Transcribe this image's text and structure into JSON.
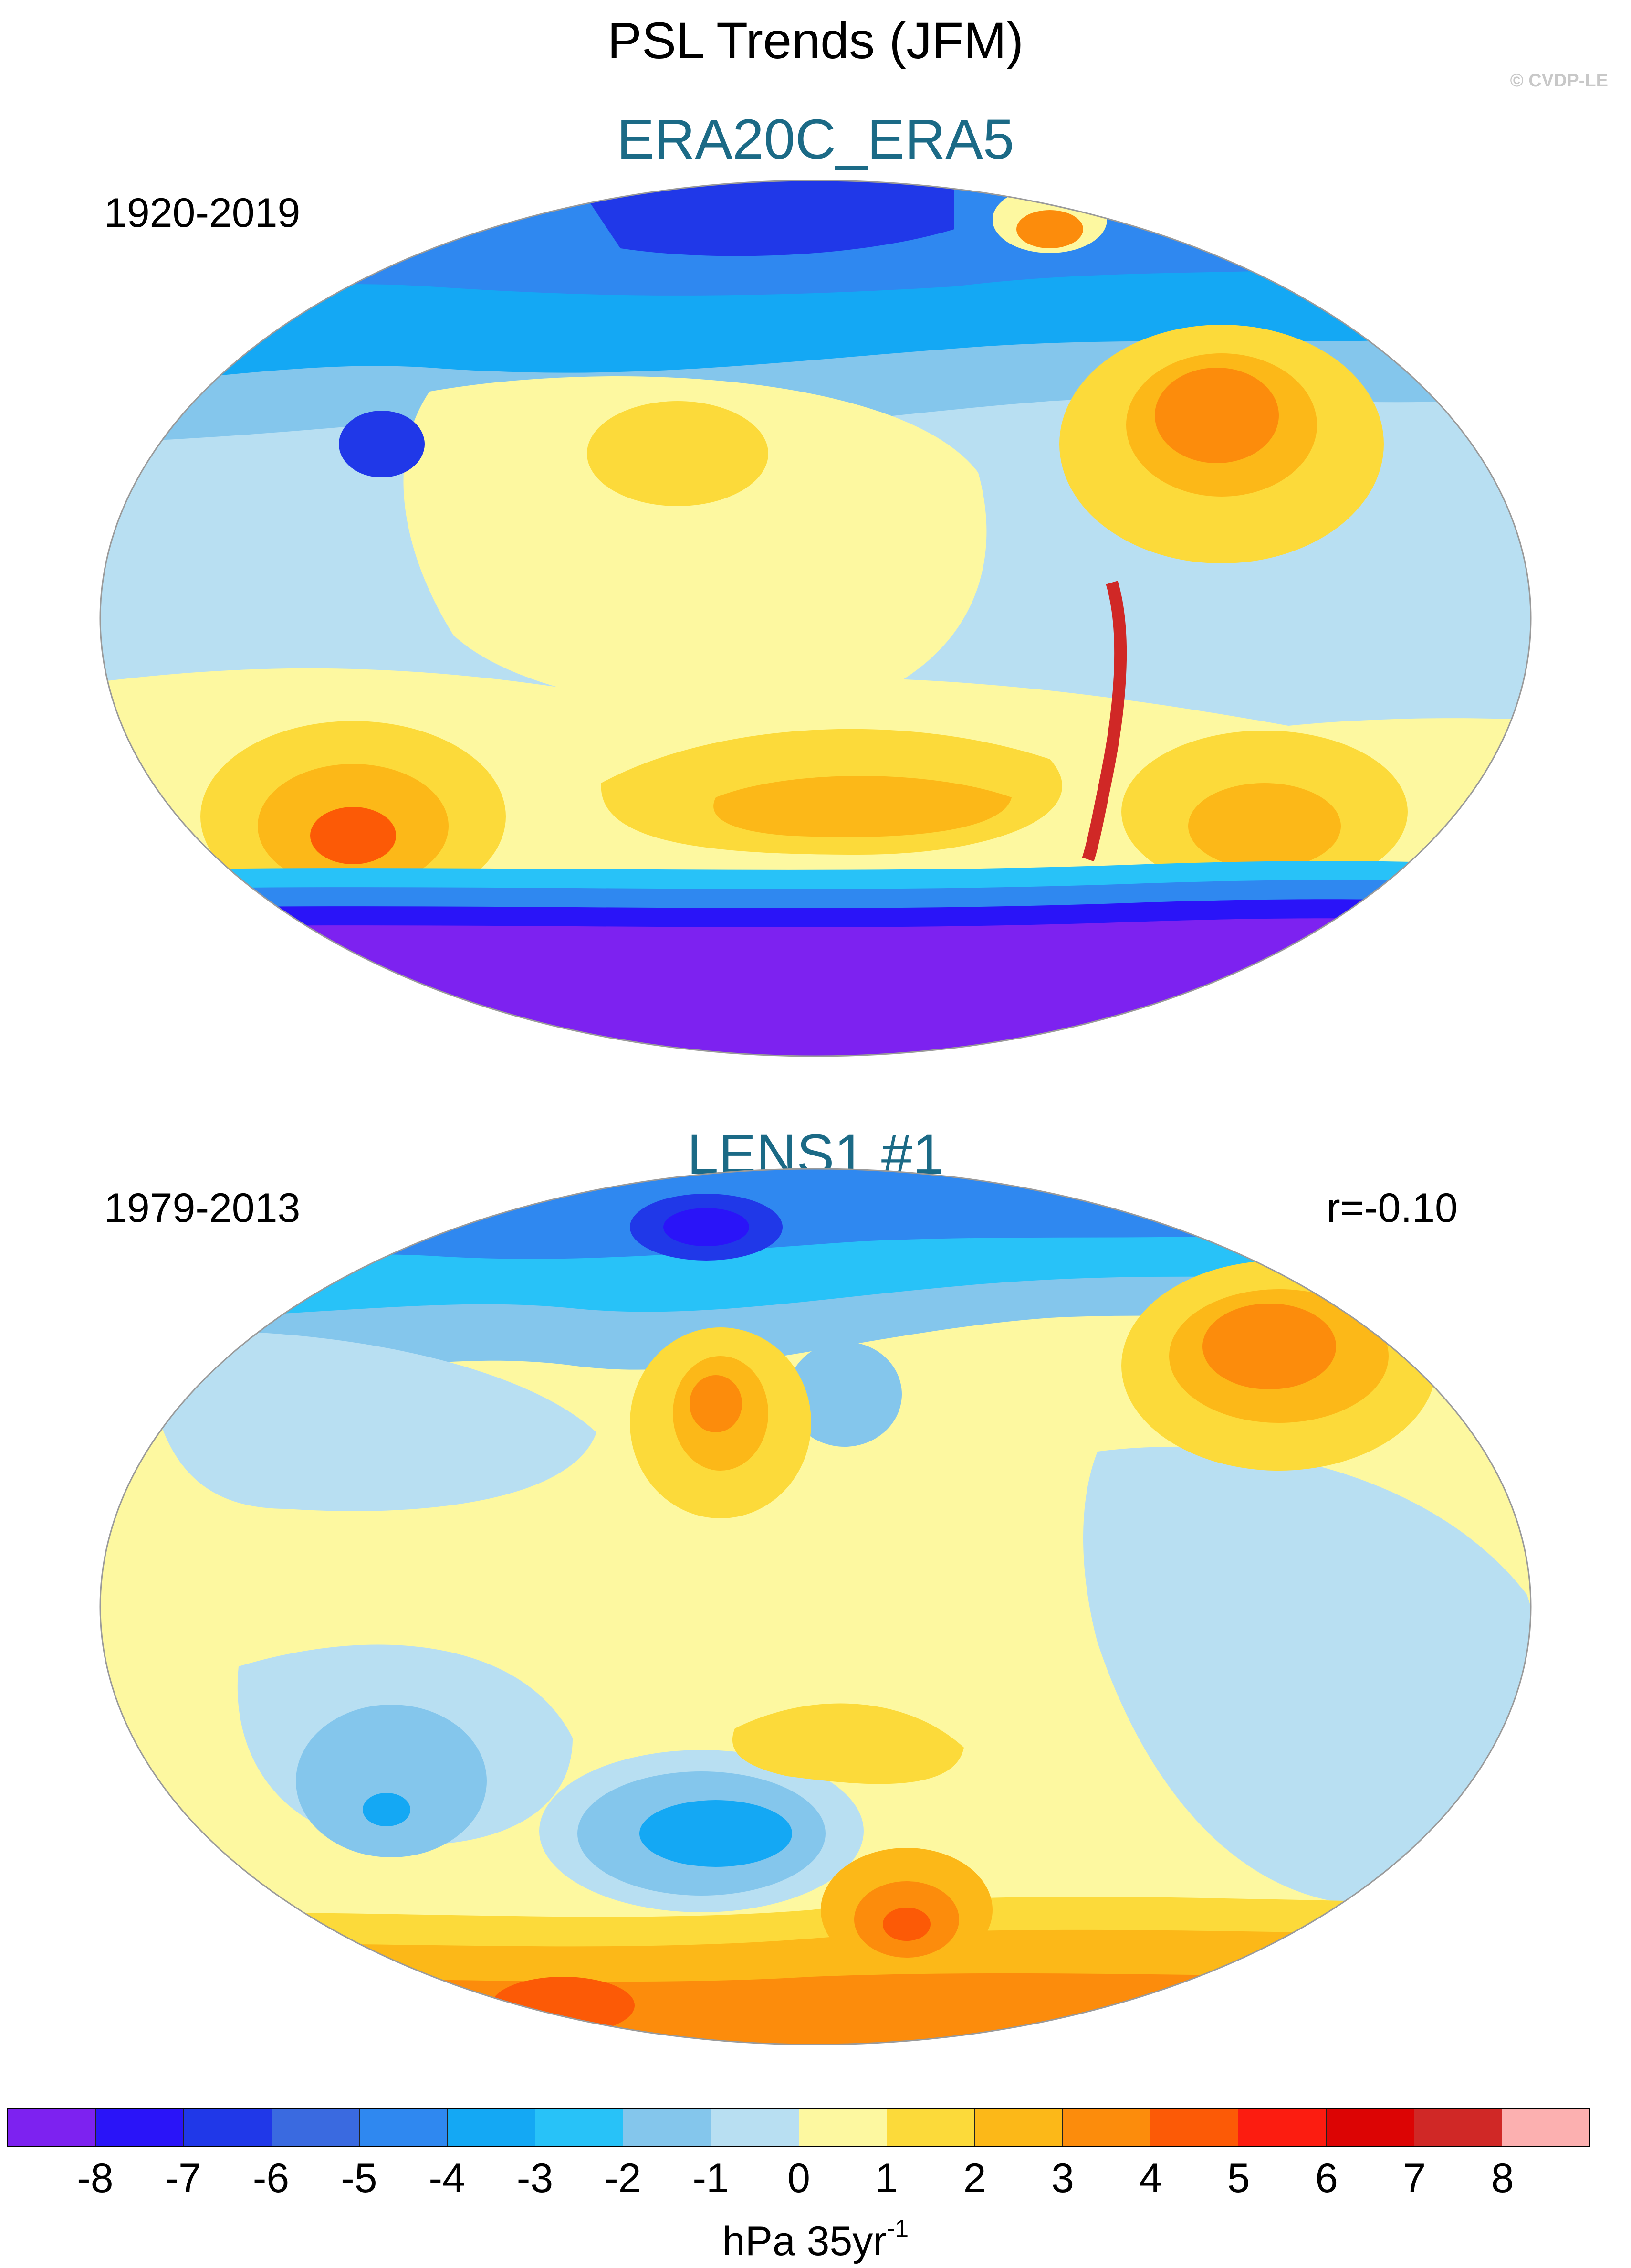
{
  "figure": {
    "title": "PSL Trends (JFM)",
    "watermark": "© CVDP-LE"
  },
  "panels": [
    {
      "title": "ERA20C_ERA5",
      "period": "1920-2019",
      "corr": ""
    },
    {
      "title": "LENS1 #1",
      "period": "1979-2013",
      "corr": "r=-0.10"
    }
  ],
  "colorbar": {
    "colors": [
      "#7d22f0",
      "#2a14f8",
      "#2038e8",
      "#3a6ae0",
      "#2f88f0",
      "#14a8f4",
      "#28c2f8",
      "#84c6ec",
      "#b8dff2",
      "#fdf8a0",
      "#fcda3a",
      "#fcb818",
      "#fc8c0c",
      "#fc5a06",
      "#fc1c10",
      "#dc0404",
      "#d02826",
      "#fcb0b0"
    ],
    "ticks": [
      "-8",
      "-7",
      "-6",
      "-5",
      "-4",
      "-3",
      "-2",
      "-1",
      "0",
      "1",
      "2",
      "3",
      "4",
      "5",
      "6",
      "7",
      "8"
    ],
    "units_main": "hPa 35yr",
    "units_sup": "-1"
  },
  "chart_data": {
    "type": "heatmap",
    "variable": "PSL trends, JFM",
    "units": "hPa 35yr^-1",
    "levels": [
      -8,
      -7,
      -6,
      -5,
      -4,
      -3,
      -2,
      -1,
      0,
      1,
      2,
      3,
      4,
      5,
      6,
      7,
      8
    ],
    "maps": [
      {
        "name": "ERA20C_ERA5",
        "period": "1920-2019",
        "pattern_correlation": null
      },
      {
        "name": "LENS1 #1",
        "period": "1979-2013",
        "pattern_correlation": -0.1
      }
    ]
  }
}
